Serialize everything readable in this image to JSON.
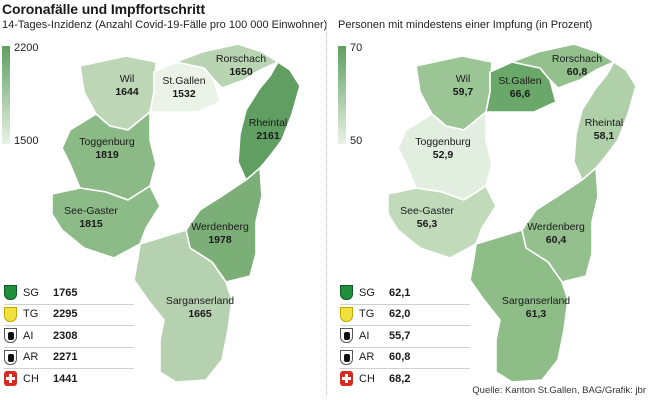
{
  "title": "Coronafälle und Impffortschritt",
  "left": {
    "subtitle": "14-Tages-Inzidenz (Anzahl Covid-19-Fälle pro 100 000 Einwohner)",
    "legend_max": "2200",
    "legend_min": "1500",
    "regions": [
      {
        "name": "Wil",
        "value": "1644",
        "color": "#bcd6b6"
      },
      {
        "name": "St.Gallen",
        "value": "1532",
        "color": "#ebf3e8"
      },
      {
        "name": "Rorschach",
        "value": "1650",
        "color": "#b9d4b3"
      },
      {
        "name": "Rheintal",
        "value": "2161",
        "color": "#609e61"
      },
      {
        "name": "Toggenburg",
        "value": "1819",
        "color": "#8cba87"
      },
      {
        "name": "See-Gaster",
        "value": "1815",
        "color": "#8dbb88"
      },
      {
        "name": "Werdenberg",
        "value": "1978",
        "color": "#7caf78"
      },
      {
        "name": "Sarganserland",
        "value": "1665",
        "color": "#b6d1af"
      }
    ],
    "cantons": [
      {
        "code": "SG",
        "value": "1765"
      },
      {
        "code": "TG",
        "value": "2295"
      },
      {
        "code": "AI",
        "value": "2308"
      },
      {
        "code": "AR",
        "value": "2271"
      },
      {
        "code": "CH",
        "value": "1441"
      }
    ]
  },
  "right": {
    "subtitle": "Personen mit mindestens einer Impfung (in Prozent)",
    "legend_max": "70",
    "legend_min": "50",
    "regions": [
      {
        "name": "Wil",
        "value": "59,7",
        "color": "#9cc596"
      },
      {
        "name": "St.Gallen",
        "value": "66,6",
        "color": "#6aa86a"
      },
      {
        "name": "Rorschach",
        "value": "60,8",
        "color": "#94c08e"
      },
      {
        "name": "Rheintal",
        "value": "58,1",
        "color": "#b0d0a9"
      },
      {
        "name": "Toggenburg",
        "value": "52,9",
        "color": "#e2eedf"
      },
      {
        "name": "See-Gaster",
        "value": "56,3",
        "color": "#c0daba"
      },
      {
        "name": "Werdenberg",
        "value": "60,4",
        "color": "#94c08e"
      },
      {
        "name": "Sarganserland",
        "value": "61,3",
        "color": "#8ebd88"
      }
    ],
    "cantons": [
      {
        "code": "SG",
        "value": "62,1"
      },
      {
        "code": "TG",
        "value": "62,0"
      },
      {
        "code": "AI",
        "value": "55,7"
      },
      {
        "code": "AR",
        "value": "60,8"
      },
      {
        "code": "CH",
        "value": "68,2"
      }
    ]
  },
  "icons": {
    "SG": "canton-sg-crest-icon",
    "TG": "canton-tg-crest-icon",
    "AI": "canton-ai-crest-icon",
    "AR": "canton-ar-crest-icon",
    "CH": "swiss-cross-icon"
  },
  "source": "Quelle: Kanton St.Gallen, BAG/Grafik: jbr"
}
